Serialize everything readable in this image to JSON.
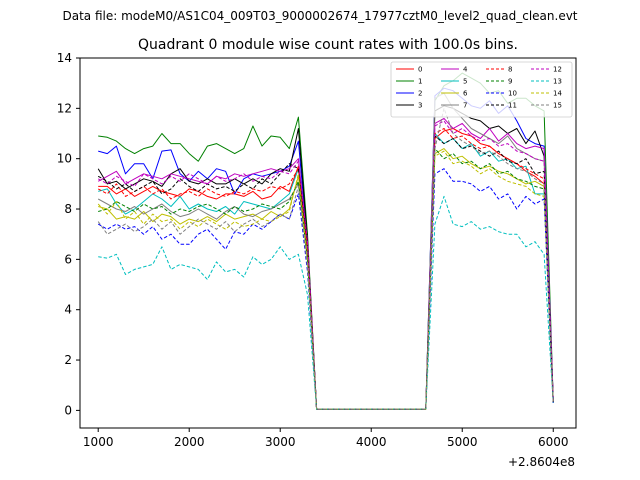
{
  "figure": {
    "suptitle": "Data file: modeM0/AS1C04_009T03_9000002674_17977cztM0_level2_quad_clean.evt"
  },
  "chart_data": {
    "type": "line",
    "title": "Quadrant 0 module wise count rates with 100.0s bins.",
    "xlabel": "",
    "ylabel": "",
    "x_offset_label": "+2.8604e8",
    "xlim": [
      800,
      6250
    ],
    "ylim": [
      -0.7,
      14
    ],
    "xticks": [
      1000,
      2000,
      3000,
      4000,
      5000,
      6000
    ],
    "xtick_labels": [
      "1000",
      "2000",
      "3000",
      "4000",
      "5000",
      "6000"
    ],
    "yticks": [
      0,
      2,
      4,
      6,
      8,
      10,
      12,
      14
    ],
    "ytick_labels": [
      "0",
      "2",
      "4",
      "6",
      "8",
      "10",
      "12",
      "14"
    ],
    "grid": false,
    "legend_position": "upper-right",
    "legend_columns": 4,
    "x": [
      1000,
      1100,
      1200,
      1300,
      1400,
      1500,
      1600,
      1700,
      1800,
      1900,
      2000,
      2100,
      2200,
      2300,
      2400,
      2500,
      2600,
      2700,
      2800,
      2900,
      3000,
      3100,
      3200,
      3300,
      3400,
      3500,
      3600,
      3700,
      3800,
      3900,
      4000,
      4100,
      4200,
      4300,
      4400,
      4500,
      4600,
      4700,
      4800,
      4900,
      5000,
      5100,
      5200,
      5300,
      5400,
      5500,
      5600,
      5700,
      5800,
      5900,
      6000
    ],
    "series": [
      {
        "name": "0",
        "color": "#ff0000",
        "dash": "solid",
        "values": [
          8.9,
          8.9,
          8.6,
          8.8,
          8.5,
          8.7,
          8.9,
          8.7,
          8.6,
          8.5,
          8.8,
          8.7,
          8.5,
          8.4,
          8.6,
          8.6,
          8.5,
          8.7,
          8.4,
          8.5,
          8.9,
          8.7,
          9.7,
          6.5,
          0.05,
          0.05,
          0.05,
          0.05,
          0.05,
          0.05,
          0.05,
          0.05,
          0.05,
          0.05,
          0.05,
          0.05,
          0.05,
          10.8,
          11.1,
          11.2,
          11.0,
          10.9,
          10.6,
          10.5,
          10.2,
          10.0,
          9.8,
          9.5,
          9.3,
          9.0,
          0.4
        ]
      },
      {
        "name": "1",
        "color": "#008000",
        "dash": "solid",
        "values": [
          10.9,
          10.85,
          10.7,
          10.4,
          10.2,
          10.4,
          10.5,
          11.0,
          10.6,
          10.6,
          10.2,
          9.9,
          10.5,
          10.6,
          10.4,
          10.2,
          10.4,
          11.3,
          10.5,
          10.9,
          10.85,
          10.4,
          11.65,
          7.0,
          0.05,
          0.05,
          0.05,
          0.05,
          0.05,
          0.05,
          0.05,
          0.05,
          0.05,
          0.05,
          0.05,
          0.05,
          0.05,
          12.3,
          12.9,
          13.1,
          13.4,
          13.2,
          13.0,
          12.6,
          12.7,
          12.2,
          12.4,
          12.4,
          12.1,
          11.9,
          0.4
        ]
      },
      {
        "name": "2",
        "color": "#0000ff",
        "dash": "solid",
        "values": [
          10.3,
          10.2,
          10.5,
          9.4,
          9.8,
          9.8,
          9.2,
          10.3,
          10.35,
          9.4,
          9.1,
          9.5,
          9.2,
          9.6,
          9.5,
          8.6,
          9.2,
          9.4,
          9.3,
          9.4,
          9.5,
          9.7,
          10.7,
          6.6,
          0.05,
          0.05,
          0.05,
          0.05,
          0.05,
          0.05,
          0.05,
          0.05,
          0.05,
          0.05,
          0.05,
          0.05,
          0.05,
          12.5,
          12.8,
          12.7,
          12.4,
          12.1,
          12.0,
          12.3,
          11.8,
          12.1,
          11.5,
          10.8,
          10.6,
          10.5,
          0.4
        ]
      },
      {
        "name": "3",
        "color": "#000000",
        "dash": "solid",
        "values": [
          9.6,
          9.0,
          9.1,
          8.8,
          9.0,
          9.2,
          9.1,
          8.9,
          9.4,
          9.6,
          9.1,
          9.0,
          9.2,
          9.0,
          9.0,
          9.2,
          9.0,
          9.2,
          9.0,
          9.4,
          9.6,
          9.5,
          11.2,
          6.8,
          0.05,
          0.05,
          0.05,
          0.05,
          0.05,
          0.05,
          0.05,
          0.05,
          0.05,
          0.05,
          0.05,
          0.05,
          0.05,
          11.9,
          12.1,
          12.0,
          11.8,
          11.6,
          11.5,
          11.2,
          11.3,
          11.0,
          11.2,
          10.6,
          11.1,
          10.1,
          0.4
        ]
      },
      {
        "name": "4",
        "color": "#bf00bf",
        "dash": "solid",
        "values": [
          9.1,
          9.3,
          9.5,
          9.0,
          9.2,
          9.4,
          9.3,
          9.2,
          9.4,
          9.3,
          9.2,
          9.1,
          9.0,
          9.3,
          9.2,
          9.4,
          9.3,
          9.4,
          9.5,
          9.6,
          9.5,
          9.6,
          10.0,
          6.6,
          0.05,
          0.05,
          0.05,
          0.05,
          0.05,
          0.05,
          0.05,
          0.05,
          0.05,
          0.05,
          0.05,
          0.05,
          0.05,
          11.4,
          11.6,
          11.2,
          11.4,
          11.0,
          10.8,
          11.2,
          10.7,
          11.0,
          10.6,
          10.4,
          10.5,
          10.4,
          0.4
        ]
      },
      {
        "name": "5",
        "color": "#00bfbf",
        "dash": "solid",
        "values": [
          8.7,
          8.8,
          8.2,
          7.8,
          8.0,
          8.3,
          8.6,
          8.4,
          8.1,
          8.5,
          8.0,
          8.2,
          8.0,
          7.9,
          8.1,
          7.8,
          8.3,
          8.2,
          8.1,
          8.0,
          8.3,
          8.6,
          9.6,
          6.3,
          0.05,
          0.05,
          0.05,
          0.05,
          0.05,
          0.05,
          0.05,
          0.05,
          0.05,
          0.05,
          0.05,
          0.05,
          0.05,
          11.0,
          10.6,
          10.8,
          10.4,
          10.6,
          10.1,
          10.3,
          9.9,
          10.0,
          9.6,
          9.7,
          8.6,
          8.6,
          0.3
        ]
      },
      {
        "name": "6",
        "color": "#bfbf00",
        "dash": "solid",
        "values": [
          8.1,
          8.0,
          7.6,
          7.7,
          7.6,
          7.9,
          7.5,
          7.8,
          7.7,
          7.4,
          7.6,
          7.5,
          7.7,
          7.5,
          7.8,
          7.6,
          7.7,
          7.8,
          7.6,
          7.9,
          7.7,
          8.0,
          9.3,
          6.2,
          0.05,
          0.05,
          0.05,
          0.05,
          0.05,
          0.05,
          0.05,
          0.05,
          0.05,
          0.05,
          0.05,
          0.05,
          0.05,
          10.2,
          10.4,
          10.0,
          10.1,
          9.8,
          9.6,
          9.7,
          9.5,
          9.4,
          9.2,
          9.0,
          9.1,
          8.9,
          0.3
        ]
      },
      {
        "name": "7",
        "color": "#808080",
        "dash": "solid",
        "values": [
          8.4,
          8.2,
          8.0,
          7.9,
          8.1,
          7.8,
          8.0,
          8.2,
          7.9,
          7.7,
          7.8,
          8.0,
          7.8,
          7.6,
          7.9,
          8.1,
          7.8,
          7.7,
          7.9,
          8.0,
          8.2,
          8.4,
          9.0,
          6.2,
          0.05,
          0.05,
          0.05,
          0.05,
          0.05,
          0.05,
          0.05,
          0.05,
          0.05,
          0.05,
          0.05,
          0.05,
          0.05,
          12.4,
          12.6,
          12.0,
          11.6,
          11.2,
          11.0,
          10.8,
          10.6,
          10.9,
          10.4,
          10.2,
          10.0,
          9.9,
          0.3
        ]
      },
      {
        "name": "8",
        "color": "#ff0000",
        "dash": "dashed",
        "values": [
          8.8,
          8.6,
          9.0,
          8.5,
          8.7,
          8.9,
          8.6,
          8.8,
          8.4,
          8.6,
          8.7,
          8.5,
          8.8,
          8.6,
          8.5,
          8.7,
          8.6,
          8.8,
          8.7,
          8.9,
          8.8,
          9.0,
          9.6,
          6.4,
          0.05,
          0.05,
          0.05,
          0.05,
          0.05,
          0.05,
          0.05,
          0.05,
          0.05,
          0.05,
          0.05,
          0.05,
          0.05,
          11.0,
          11.2,
          10.8,
          10.9,
          10.6,
          10.4,
          10.5,
          10.2,
          10.0,
          9.8,
          9.6,
          9.4,
          9.2,
          0.35
        ]
      },
      {
        "name": "9",
        "color": "#008000",
        "dash": "dashed",
        "values": [
          7.9,
          8.0,
          8.3,
          8.1,
          7.9,
          8.2,
          8.0,
          8.1,
          7.8,
          8.0,
          7.9,
          8.1,
          8.2,
          8.0,
          7.8,
          8.1,
          7.9,
          8.0,
          8.2,
          8.1,
          8.0,
          8.3,
          9.1,
          6.0,
          0.05,
          0.05,
          0.05,
          0.05,
          0.05,
          0.05,
          0.05,
          0.05,
          0.05,
          0.05,
          0.05,
          0.05,
          0.05,
          10.4,
          10.0,
          10.2,
          9.8,
          9.9,
          9.6,
          9.8,
          9.4,
          9.5,
          9.2,
          9.1,
          8.9,
          8.8,
          0.3
        ]
      },
      {
        "name": "10",
        "color": "#0000ff",
        "dash": "dashed",
        "values": [
          7.4,
          7.2,
          7.4,
          7.2,
          7.3,
          7.0,
          7.3,
          6.8,
          7.0,
          6.6,
          6.6,
          7.0,
          7.2,
          6.8,
          6.4,
          7.1,
          7.0,
          7.4,
          7.2,
          7.5,
          7.8,
          7.6,
          8.6,
          5.5,
          0.05,
          0.05,
          0.05,
          0.05,
          0.05,
          0.05,
          0.05,
          0.05,
          0.05,
          0.05,
          0.05,
          0.05,
          0.05,
          9.4,
          9.6,
          9.1,
          9.1,
          9.0,
          8.7,
          8.9,
          8.4,
          8.6,
          8.0,
          8.5,
          8.2,
          8.4,
          0.3
        ]
      },
      {
        "name": "11",
        "color": "#000000",
        "dash": "dashed",
        "values": [
          9.3,
          9.1,
          8.8,
          9.0,
          8.7,
          8.9,
          9.1,
          8.6,
          8.8,
          9.2,
          8.9,
          8.7,
          9.0,
          8.8,
          8.9,
          8.7,
          9.0,
          8.8,
          9.2,
          9.0,
          9.4,
          9.8,
          9.6,
          6.6,
          0.05,
          0.05,
          0.05,
          0.05,
          0.05,
          0.05,
          0.05,
          0.05,
          0.05,
          0.05,
          0.05,
          0.05,
          0.05,
          10.9,
          10.6,
          10.8,
          10.4,
          10.5,
          10.3,
          10.1,
          10.3,
          9.9,
          9.8,
          10.0,
          9.4,
          9.5,
          0.35
        ]
      },
      {
        "name": "12",
        "color": "#bf00bf",
        "dash": "dashed",
        "values": [
          9.2,
          9.0,
          9.3,
          9.1,
          8.9,
          9.4,
          9.2,
          9.0,
          9.3,
          9.1,
          9.4,
          9.2,
          9.0,
          9.3,
          9.1,
          9.2,
          9.4,
          9.1,
          9.3,
          9.2,
          9.5,
          9.4,
          9.9,
          6.7,
          0.05,
          0.05,
          0.05,
          0.05,
          0.05,
          0.05,
          0.05,
          0.05,
          0.05,
          0.05,
          0.05,
          0.05,
          0.05,
          11.3,
          11.5,
          11.0,
          11.2,
          10.9,
          10.7,
          10.8,
          10.5,
          10.6,
          10.3,
          10.2,
          10.0,
          9.9,
          0.4
        ]
      },
      {
        "name": "13",
        "color": "#00bfbf",
        "dash": "dashed",
        "values": [
          6.1,
          6.05,
          6.2,
          5.4,
          5.6,
          5.7,
          5.8,
          6.5,
          5.6,
          5.8,
          5.7,
          5.6,
          5.2,
          5.9,
          5.5,
          5.6,
          5.3,
          6.1,
          5.8,
          6.0,
          6.5,
          6.0,
          6.2,
          4.6,
          0.05,
          0.05,
          0.05,
          0.05,
          0.05,
          0.05,
          0.05,
          0.05,
          0.05,
          0.05,
          0.05,
          0.05,
          0.05,
          7.4,
          8.5,
          7.4,
          7.3,
          7.5,
          7.2,
          7.3,
          7.1,
          7.0,
          7.0,
          6.5,
          6.7,
          6.2,
          0.3
        ]
      },
      {
        "name": "14",
        "color": "#bfbf00",
        "dash": "dashed",
        "values": [
          8.2,
          7.8,
          8.3,
          7.6,
          7.9,
          7.4,
          7.8,
          7.5,
          7.6,
          7.2,
          7.5,
          7.3,
          7.6,
          7.4,
          7.2,
          7.5,
          7.3,
          7.4,
          7.6,
          7.5,
          7.7,
          7.9,
          9.4,
          5.9,
          0.05,
          0.05,
          0.05,
          0.05,
          0.05,
          0.05,
          0.05,
          0.05,
          0.05,
          0.05,
          0.05,
          0.05,
          0.05,
          10.1,
          10.3,
          9.8,
          9.9,
          9.7,
          9.4,
          9.6,
          9.3,
          9.1,
          9.0,
          8.9,
          8.6,
          8.5,
          0.3
        ]
      },
      {
        "name": "15",
        "color": "#808080",
        "dash": "dashed",
        "values": [
          7.5,
          7.0,
          7.2,
          7.4,
          7.1,
          7.3,
          7.6,
          7.2,
          7.5,
          7.0,
          7.3,
          7.6,
          7.4,
          7.2,
          7.5,
          7.1,
          7.4,
          7.6,
          7.3,
          7.5,
          7.8,
          7.6,
          8.9,
          5.7,
          0.05,
          0.05,
          0.05,
          0.05,
          0.05,
          0.05,
          0.05,
          0.05,
          0.05,
          0.05,
          0.05,
          0.05,
          0.05,
          10.4,
          12.0,
          11.0,
          10.7,
          10.5,
          10.2,
          10.3,
          10.1,
          9.8,
          9.6,
          9.5,
          9.2,
          9.0,
          0.3
        ]
      }
    ]
  }
}
